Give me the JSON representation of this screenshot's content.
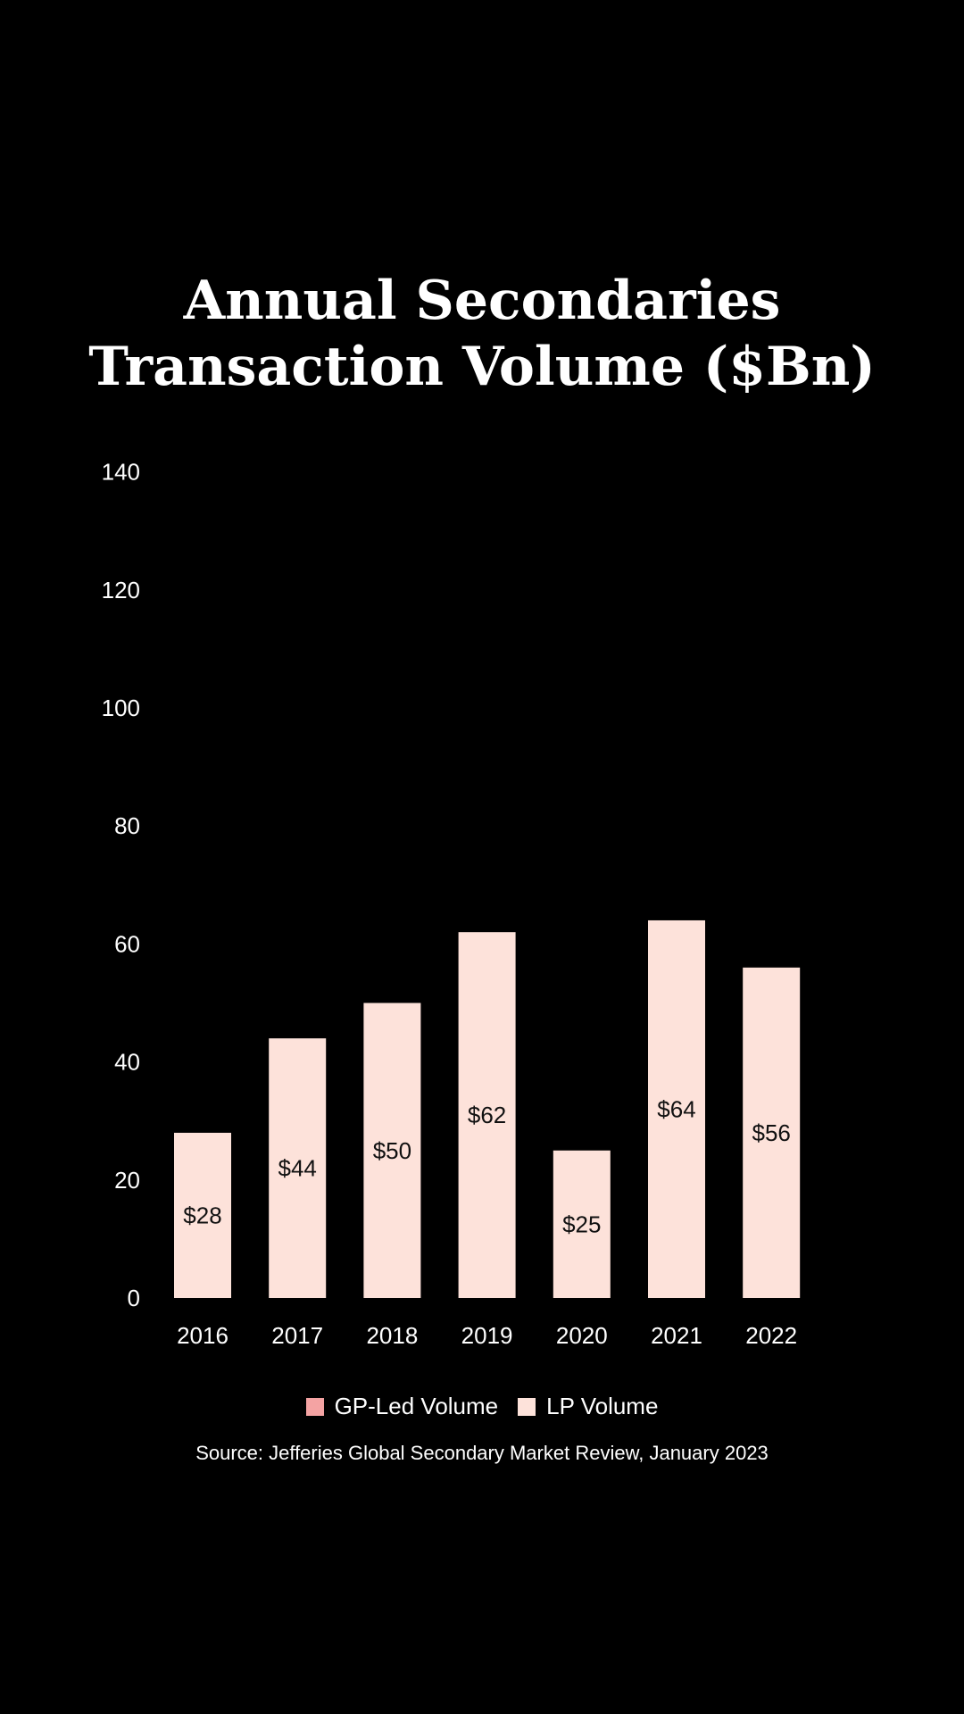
{
  "chart_data": {
    "type": "bar",
    "title_lines": [
      "Annual Secondaries",
      "Transaction Volume ($Bn)"
    ],
    "categories": [
      "2016",
      "2017",
      "2018",
      "2019",
      "2020",
      "2021",
      "2022"
    ],
    "series": [
      {
        "name": "GP-Led Volume",
        "color": "#f4a3a3",
        "values": [
          0,
          0,
          0,
          0,
          0,
          0,
          0
        ]
      },
      {
        "name": "LP Volume",
        "color": "#fde2da",
        "values": [
          28,
          44,
          50,
          62,
          25,
          64,
          56
        ]
      }
    ],
    "data_labels": [
      "$28",
      "$44",
      "$50",
      "$62",
      "$25",
      "$64",
      "$56"
    ],
    "ylim": [
      0,
      140
    ],
    "yticks": [
      "0",
      "20",
      "40",
      "60",
      "80",
      "100",
      "120",
      "140"
    ],
    "grid": false,
    "legend_position": "bottom",
    "source": "Source: Jefferies Global Secondary Market Review, January 2023"
  },
  "colors": {
    "background": "#000000",
    "text": "#ffffff",
    "label_text": "#111111"
  }
}
